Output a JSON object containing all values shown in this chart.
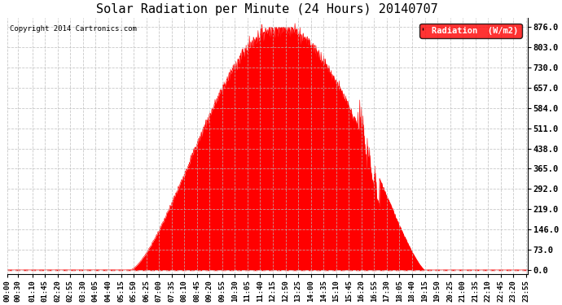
{
  "title": "Solar Radiation per Minute (24 Hours) 20140707",
  "copyright": "Copyright 2014 Cartronics.com",
  "legend_label": "Radiation  (W/m2)",
  "fill_color": "#FF0000",
  "line_color": "#FF0000",
  "background_color": "#FFFFFF",
  "grid_color": "#BBBBBB",
  "y_ticks": [
    0.0,
    73.0,
    146.0,
    219.0,
    292.0,
    365.0,
    438.0,
    511.0,
    584.0,
    657.0,
    730.0,
    803.0,
    876.0
  ],
  "ylim": [
    -15,
    910
  ],
  "total_minutes": 1440,
  "sunrise_minute": 340,
  "sunset_minute": 1155,
  "peak_minute": 755,
  "peak_value": 876,
  "x_tick_labels": [
    "00:00",
    "00:30",
    "01:10",
    "01:45",
    "02:20",
    "02:55",
    "03:30",
    "04:05",
    "04:40",
    "05:15",
    "05:50",
    "06:25",
    "07:00",
    "07:35",
    "08:10",
    "08:45",
    "09:20",
    "09:55",
    "10:30",
    "11:05",
    "11:40",
    "12:15",
    "12:50",
    "13:25",
    "14:00",
    "14:35",
    "15:10",
    "15:45",
    "16:20",
    "16:55",
    "17:30",
    "18:05",
    "18:40",
    "19:15",
    "19:50",
    "20:25",
    "21:00",
    "21:35",
    "22:10",
    "22:45",
    "23:20",
    "23:55"
  ],
  "x_tick_minutes": [
    0,
    30,
    70,
    105,
    140,
    175,
    210,
    245,
    280,
    315,
    350,
    385,
    420,
    455,
    490,
    525,
    560,
    595,
    630,
    665,
    700,
    735,
    770,
    805,
    840,
    875,
    910,
    945,
    980,
    1015,
    1050,
    1085,
    1120,
    1155,
    1190,
    1225,
    1260,
    1295,
    1330,
    1365,
    1400,
    1435
  ]
}
